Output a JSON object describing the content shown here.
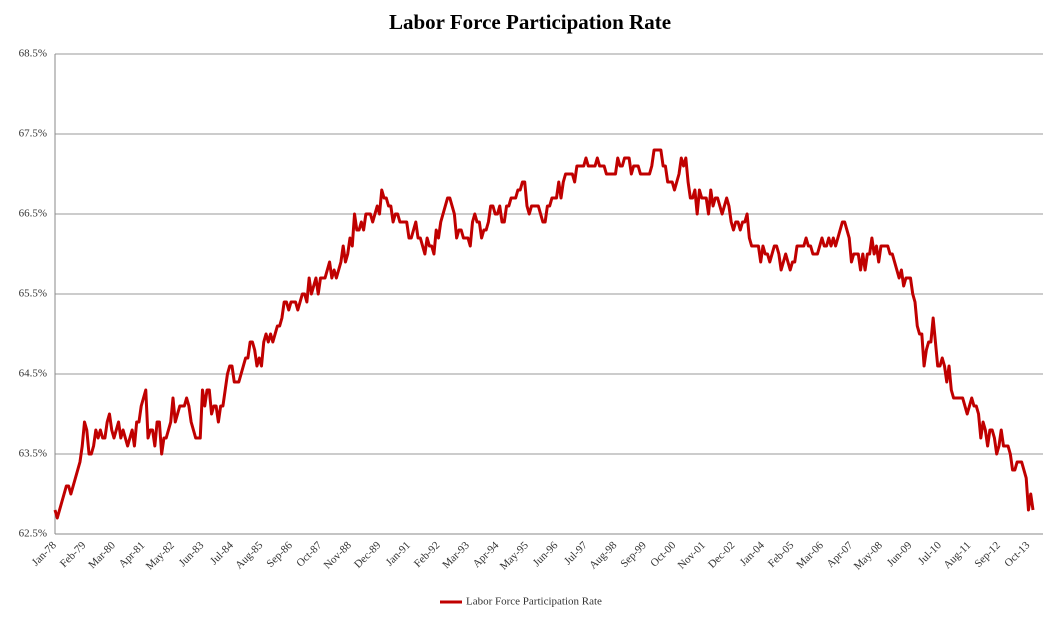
{
  "chart_data": {
    "type": "line",
    "title": "Labor Force Participation Rate",
    "categories": [
      "Jan-78",
      null,
      null,
      null,
      null,
      null,
      null,
      null,
      null,
      null,
      null,
      null,
      null,
      "Feb-79",
      null,
      null,
      null,
      null,
      null,
      null,
      null,
      null,
      null,
      null,
      null,
      null,
      "Mar-80",
      null,
      null,
      null,
      null,
      null,
      null,
      null,
      null,
      null,
      null,
      null,
      null,
      "Apr-81",
      null,
      null,
      null,
      null,
      null,
      null,
      null,
      null,
      null,
      null,
      null,
      null,
      "May-82",
      null,
      null,
      null,
      null,
      null,
      null,
      null,
      null,
      null,
      null,
      null,
      null,
      "Jun-83",
      null,
      null,
      null,
      null,
      null,
      null,
      null,
      null,
      null,
      null,
      null,
      null,
      "Jul-84",
      null,
      null,
      null,
      null,
      null,
      null,
      null,
      null,
      null,
      null,
      null,
      null,
      "Aug-85",
      null,
      null,
      null,
      null,
      null,
      null,
      null,
      null,
      null,
      null,
      null,
      null,
      "Sep-86",
      null,
      null,
      null,
      null,
      null,
      null,
      null,
      null,
      null,
      null,
      null,
      null,
      "Oct-87",
      null,
      null,
      null,
      null,
      null,
      null,
      null,
      null,
      null,
      null,
      null,
      null,
      "Nov-88",
      null,
      null,
      null,
      null,
      null,
      null,
      null,
      null,
      null,
      null,
      null,
      null,
      "Dec-89",
      null,
      null,
      null,
      null,
      null,
      null,
      null,
      null,
      null,
      null,
      null,
      null,
      "Jan-91",
      null,
      null,
      null,
      null,
      null,
      null,
      null,
      null,
      null,
      null,
      null,
      null,
      "Feb-92",
      null,
      null,
      null,
      null,
      null,
      null,
      null,
      null,
      null,
      null,
      null,
      null,
      "Mar-93",
      null,
      null,
      null,
      null,
      null,
      null,
      null,
      null,
      null,
      null,
      null,
      null,
      "Apr-94",
      null,
      null,
      null,
      null,
      null,
      null,
      null,
      null,
      null,
      null,
      null,
      null,
      "May-95",
      null,
      null,
      null,
      null,
      null,
      null,
      null,
      null,
      null,
      null,
      null,
      null,
      "Jun-96",
      null,
      null,
      null,
      null,
      null,
      null,
      null,
      null,
      null,
      null,
      null,
      null,
      "Jul-97",
      null,
      null,
      null,
      null,
      null,
      null,
      null,
      null,
      null,
      null,
      null,
      null,
      "Aug-98",
      null,
      null,
      null,
      null,
      null,
      null,
      null,
      null,
      null,
      null,
      null,
      null,
      "Sep-99",
      null,
      null,
      null,
      null,
      null,
      null,
      null,
      null,
      null,
      null,
      null,
      null,
      "Oct-00",
      null,
      null,
      null,
      null,
      null,
      null,
      null,
      null,
      null,
      null,
      null,
      null,
      "Nov-01",
      null,
      null,
      null,
      null,
      null,
      null,
      null,
      null,
      null,
      null,
      null,
      null,
      "Dec-02",
      null,
      null,
      null,
      null,
      null,
      null,
      null,
      null,
      null,
      null,
      null,
      null,
      "Jan-04",
      null,
      null,
      null,
      null,
      null,
      null,
      null,
      null,
      null,
      null,
      null,
      null,
      "Feb-05",
      null,
      null,
      null,
      null,
      null,
      null,
      null,
      null,
      null,
      null,
      null,
      null,
      "Mar-06",
      null,
      null,
      null,
      null,
      null,
      null,
      null,
      null,
      null,
      null,
      null,
      null,
      "Apr-07",
      null,
      null,
      null,
      null,
      null,
      null,
      null,
      null,
      null,
      null,
      null,
      null,
      "May-08",
      null,
      null,
      null,
      null,
      null,
      null,
      null,
      null,
      null,
      null,
      null,
      null,
      "Jun-09",
      null,
      null,
      null,
      null,
      null,
      null,
      null,
      null,
      null,
      null,
      null,
      null,
      "Jul-10",
      null,
      null,
      null,
      null,
      null,
      null,
      null,
      null,
      null,
      null,
      null,
      null,
      "Aug-11",
      null,
      null,
      null,
      null,
      null,
      null,
      null,
      null,
      null,
      null,
      null,
      null,
      "Sep-12",
      null,
      null,
      null,
      null,
      null,
      null,
      null,
      null,
      null,
      null,
      null,
      null,
      "Oct-13",
      null,
      null
    ],
    "series": [
      {
        "name": "Labor Force Participation Rate",
        "color": "#c00000",
        "values": [
          62.8,
          62.7,
          62.8,
          62.9,
          63.0,
          63.1,
          63.1,
          63.0,
          63.1,
          63.2,
          63.3,
          63.4,
          63.6,
          63.9,
          63.8,
          63.5,
          63.5,
          63.6,
          63.8,
          63.7,
          63.8,
          63.7,
          63.7,
          63.9,
          64.0,
          63.8,
          63.7,
          63.8,
          63.9,
          63.7,
          63.8,
          63.7,
          63.6,
          63.7,
          63.8,
          63.6,
          63.9,
          63.9,
          64.1,
          64.2,
          64.3,
          63.7,
          63.8,
          63.8,
          63.6,
          63.9,
          63.9,
          63.5,
          63.7,
          63.7,
          63.8,
          63.9,
          64.2,
          63.9,
          64.0,
          64.1,
          64.1,
          64.1,
          64.2,
          64.1,
          63.9,
          63.8,
          63.7,
          63.7,
          63.7,
          64.3,
          64.1,
          64.3,
          64.3,
          64.0,
          64.1,
          64.1,
          63.9,
          64.1,
          64.1,
          64.3,
          64.5,
          64.6,
          64.6,
          64.4,
          64.4,
          64.4,
          64.5,
          64.6,
          64.7,
          64.7,
          64.9,
          64.9,
          64.8,
          64.6,
          64.7,
          64.6,
          64.9,
          65.0,
          64.9,
          65.0,
          64.9,
          65.0,
          65.1,
          65.1,
          65.2,
          65.4,
          65.4,
          65.3,
          65.4,
          65.4,
          65.4,
          65.3,
          65.4,
          65.5,
          65.5,
          65.4,
          65.7,
          65.5,
          65.6,
          65.7,
          65.5,
          65.7,
          65.7,
          65.7,
          65.8,
          65.9,
          65.7,
          65.8,
          65.7,
          65.8,
          65.9,
          66.1,
          65.9,
          66.0,
          66.2,
          66.1,
          66.5,
          66.3,
          66.3,
          66.4,
          66.3,
          66.5,
          66.5,
          66.5,
          66.4,
          66.5,
          66.6,
          66.5,
          66.8,
          66.7,
          66.7,
          66.6,
          66.6,
          66.4,
          66.5,
          66.5,
          66.4,
          66.4,
          66.4,
          66.4,
          66.2,
          66.2,
          66.3,
          66.4,
          66.2,
          66.2,
          66.1,
          66.0,
          66.2,
          66.1,
          66.1,
          66.0,
          66.3,
          66.2,
          66.4,
          66.5,
          66.6,
          66.7,
          66.7,
          66.6,
          66.5,
          66.2,
          66.3,
          66.3,
          66.2,
          66.2,
          66.2,
          66.1,
          66.4,
          66.5,
          66.4,
          66.4,
          66.2,
          66.3,
          66.3,
          66.4,
          66.6,
          66.6,
          66.5,
          66.5,
          66.6,
          66.4,
          66.4,
          66.6,
          66.6,
          66.7,
          66.7,
          66.7,
          66.8,
          66.8,
          66.9,
          66.9,
          66.6,
          66.5,
          66.6,
          66.6,
          66.6,
          66.6,
          66.5,
          66.4,
          66.4,
          66.6,
          66.6,
          66.7,
          66.7,
          66.7,
          66.9,
          66.7,
          66.9,
          67.0,
          67.0,
          67.0,
          67.0,
          66.9,
          67.1,
          67.1,
          67.1,
          67.1,
          67.2,
          67.1,
          67.1,
          67.1,
          67.1,
          67.2,
          67.1,
          67.1,
          67.1,
          67.0,
          67.0,
          67.0,
          67.0,
          67.0,
          67.2,
          67.1,
          67.1,
          67.2,
          67.2,
          67.2,
          67.0,
          67.1,
          67.1,
          67.1,
          67.0,
          67.0,
          67.0,
          67.0,
          67.0,
          67.1,
          67.3,
          67.3,
          67.3,
          67.3,
          67.1,
          67.1,
          66.9,
          66.9,
          66.9,
          66.8,
          66.9,
          67.0,
          67.2,
          67.1,
          67.2,
          66.9,
          66.7,
          66.7,
          66.8,
          66.5,
          66.8,
          66.7,
          66.7,
          66.7,
          66.5,
          66.8,
          66.6,
          66.7,
          66.7,
          66.6,
          66.5,
          66.6,
          66.7,
          66.6,
          66.4,
          66.3,
          66.4,
          66.4,
          66.3,
          66.4,
          66.4,
          66.5,
          66.2,
          66.1,
          66.1,
          66.1,
          66.1,
          65.9,
          66.1,
          66.0,
          66.0,
          65.9,
          66.0,
          66.1,
          66.1,
          66.0,
          65.8,
          65.9,
          66.0,
          65.9,
          65.8,
          65.9,
          65.9,
          66.1,
          66.1,
          66.1,
          66.1,
          66.2,
          66.1,
          66.1,
          66.0,
          66.0,
          66.0,
          66.1,
          66.2,
          66.1,
          66.1,
          66.2,
          66.1,
          66.2,
          66.1,
          66.2,
          66.3,
          66.4,
          66.4,
          66.3,
          66.2,
          65.9,
          66.0,
          66.0,
          66.0,
          65.8,
          66.0,
          65.8,
          66.0,
          66.0,
          66.2,
          66.0,
          66.1,
          65.9,
          66.1,
          66.1,
          66.1,
          66.1,
          66.0,
          66.0,
          65.9,
          65.8,
          65.7,
          65.8,
          65.6,
          65.7,
          65.7,
          65.7,
          65.5,
          65.4,
          65.1,
          65.0,
          65.0,
          64.6,
          64.8,
          64.9,
          64.9,
          65.2,
          64.9,
          64.6,
          64.6,
          64.7,
          64.6,
          64.4,
          64.6,
          64.3,
          64.2,
          64.2,
          64.2,
          64.2,
          64.2,
          64.1,
          64.0,
          64.1,
          64.2,
          64.1,
          64.1,
          64.0,
          63.7,
          63.9,
          63.8,
          63.6,
          63.8,
          63.8,
          63.7,
          63.5,
          63.6,
          63.8,
          63.6,
          63.6,
          63.6,
          63.5,
          63.3,
          63.3,
          63.4,
          63.4,
          63.4,
          63.3,
          63.2,
          62.8,
          63.0,
          62.8
        ]
      }
    ],
    "ylim": [
      62.5,
      68.5
    ],
    "yticks": [
      {
        "value": 62.5,
        "label": "62.5%"
      },
      {
        "value": 63.5,
        "label": "63.5%"
      },
      {
        "value": 64.5,
        "label": "64.5%"
      },
      {
        "value": 65.5,
        "label": "65.5%"
      },
      {
        "value": 66.5,
        "label": "66.5%"
      },
      {
        "value": 67.5,
        "label": "67.5%"
      },
      {
        "value": 68.5,
        "label": "68.5%"
      }
    ],
    "grid": true,
    "legend": "bottom"
  }
}
